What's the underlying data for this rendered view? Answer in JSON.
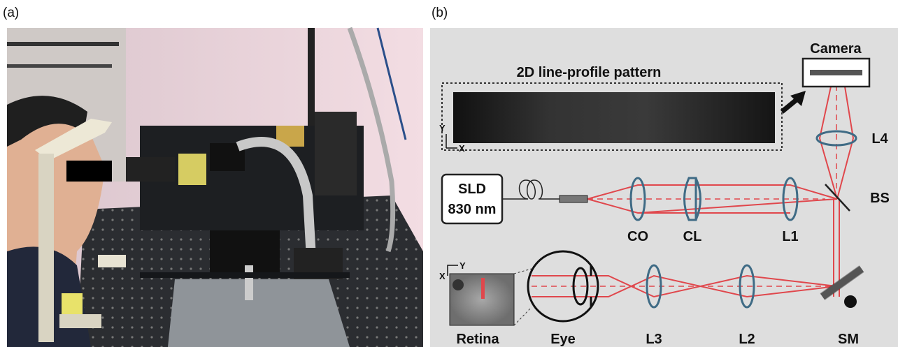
{
  "panel_a": {
    "label": "(a)"
  },
  "panel_b": {
    "label": "(b)",
    "pattern_title": "2D line-profile pattern",
    "pattern_axes": {
      "y": "Y",
      "x": "X"
    },
    "retina_axes": {
      "y": "Y",
      "x": "X"
    },
    "components": {
      "camera": "Camera",
      "l4": "L4",
      "sld": "SLD",
      "sld_wavelength": "830 nm",
      "bs": "BS",
      "co": "CO",
      "cl": "CL",
      "l1": "L1",
      "retina": "Retina",
      "eye": "Eye",
      "l3": "L3",
      "l2": "L2",
      "sm": "SM"
    }
  }
}
